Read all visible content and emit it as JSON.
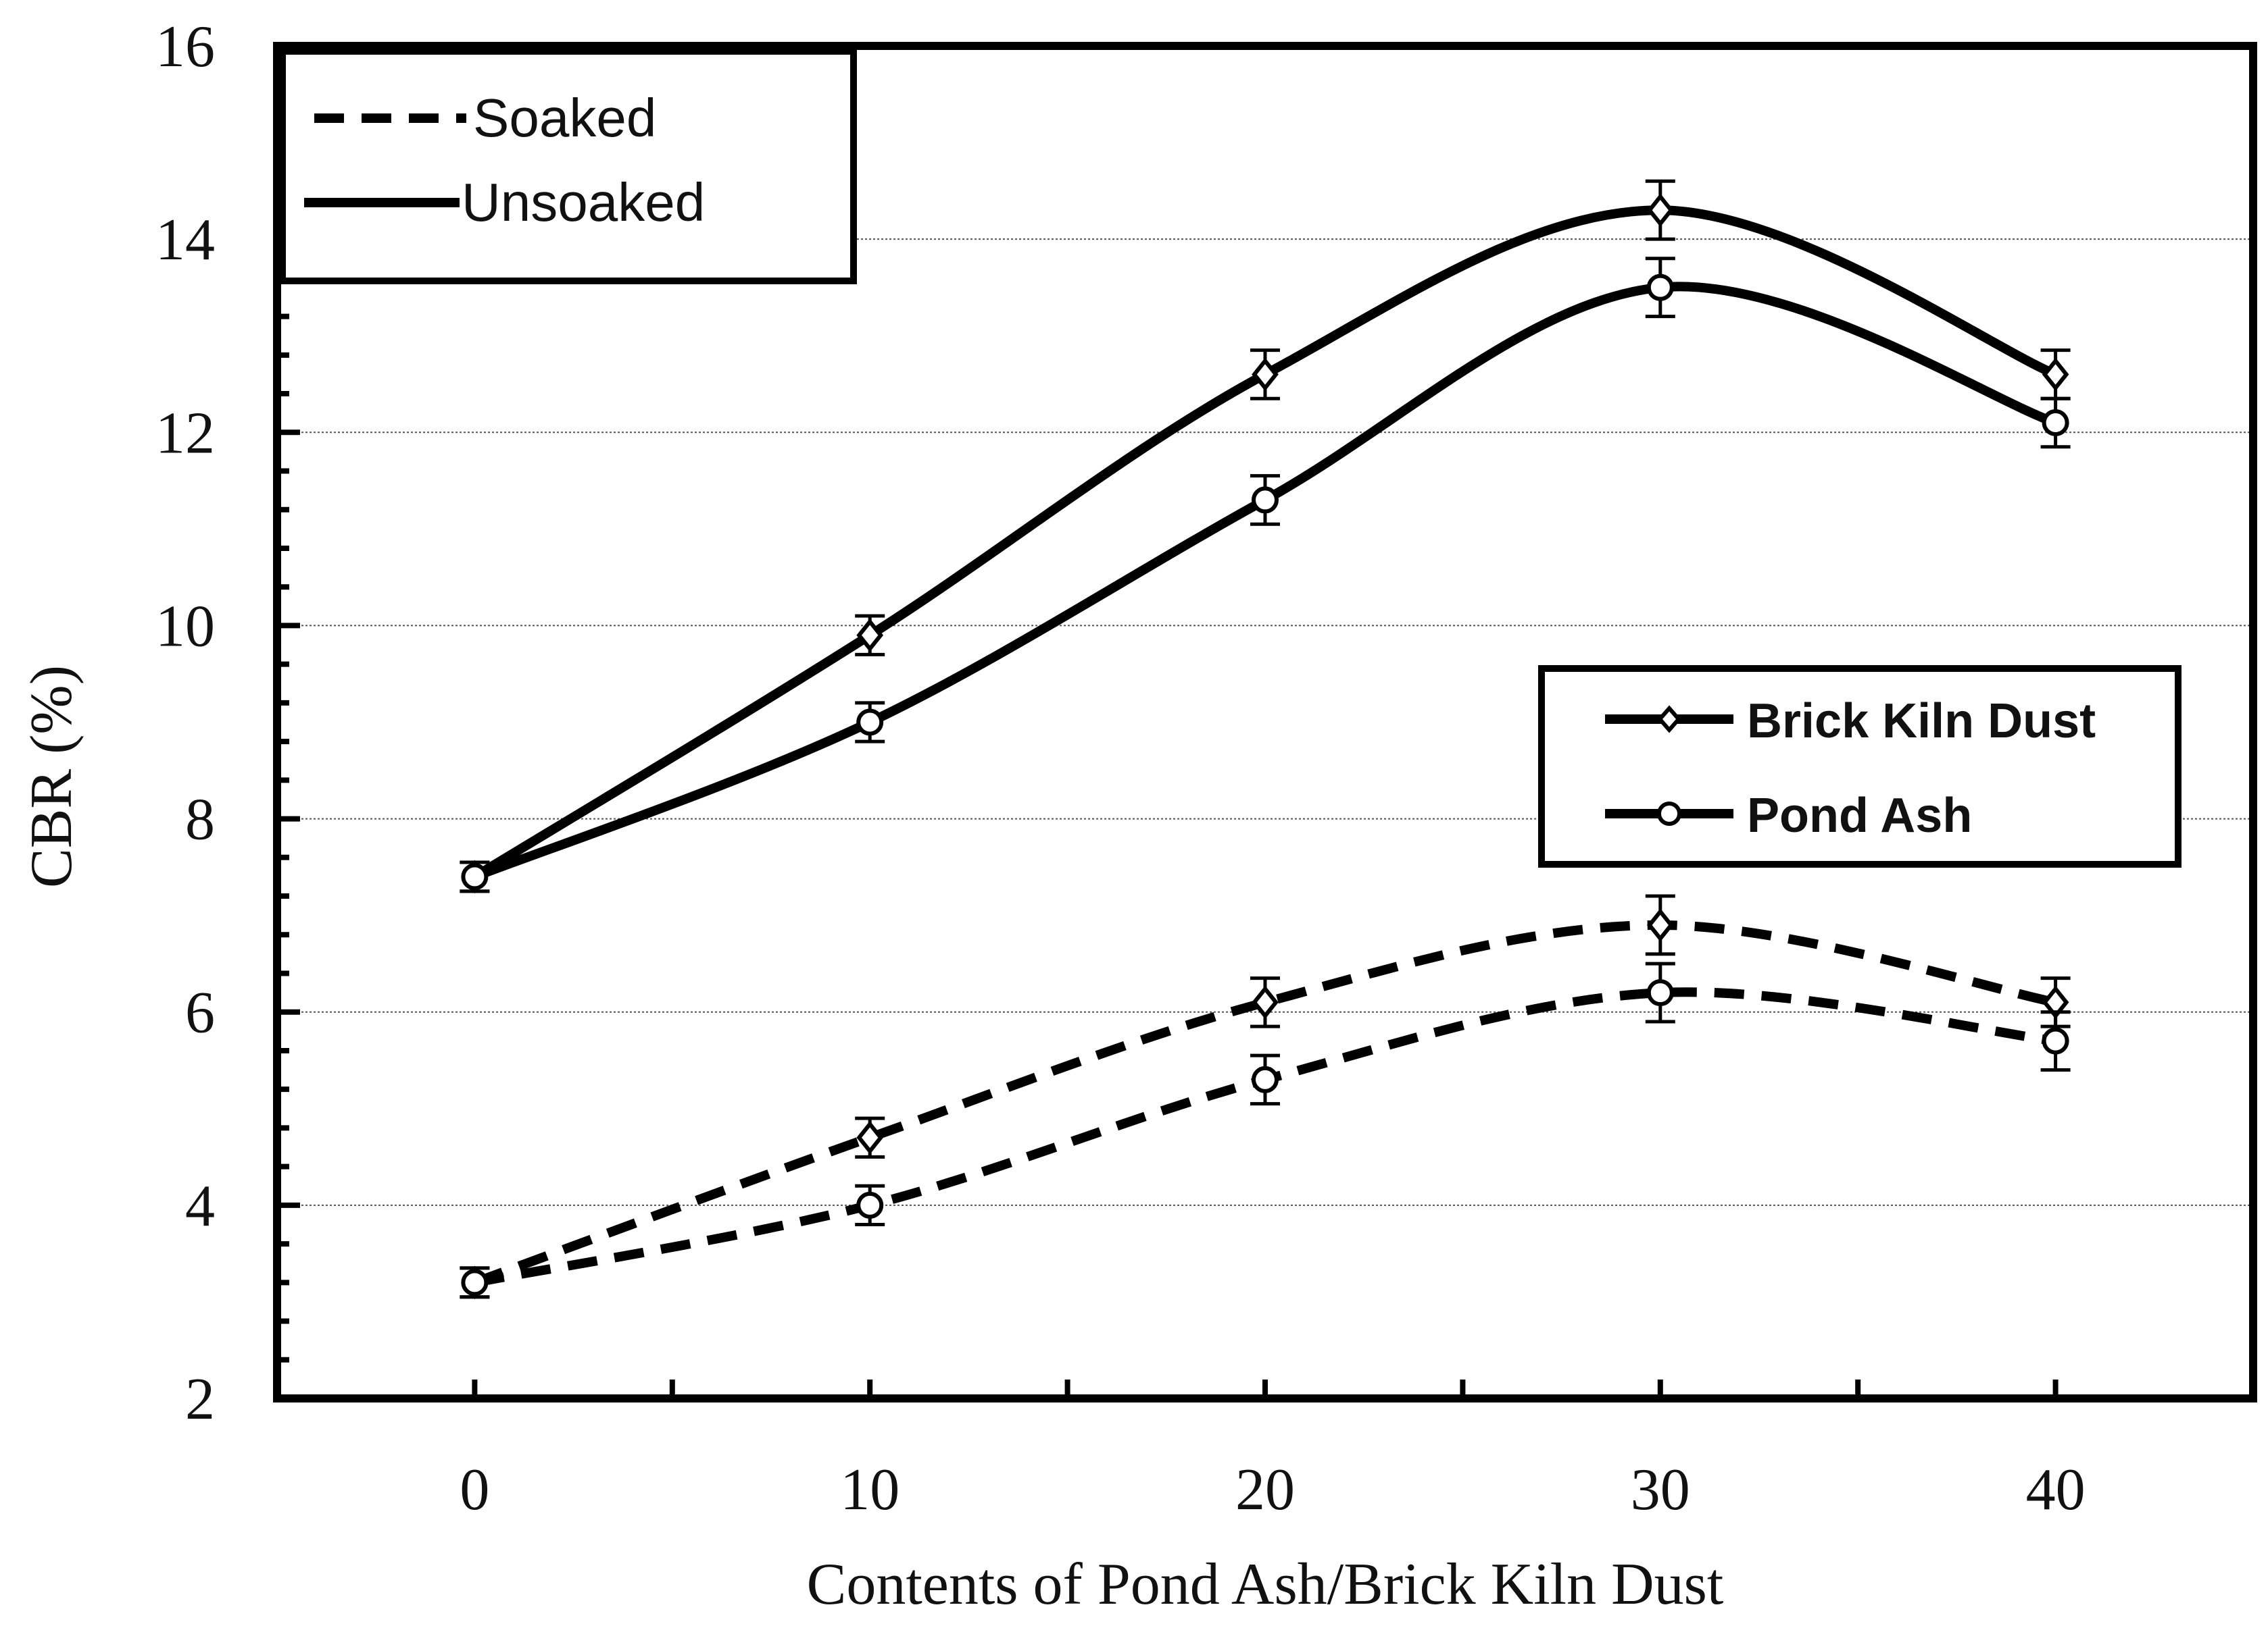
{
  "chart_data": {
    "type": "line",
    "title": "",
    "xlabel": "Contents of  Pond Ash/Brick Kiln Dust",
    "ylabel": "CBR (%)",
    "xlim": [
      -5,
      45
    ],
    "ylim": [
      2,
      16
    ],
    "x_ticks": [
      0,
      10,
      20,
      30,
      40
    ],
    "y_ticks": [
      2,
      4,
      6,
      8,
      10,
      12,
      14,
      16
    ],
    "grid": "horizontal dotted",
    "x": [
      0,
      10,
      20,
      30,
      40
    ],
    "series": [
      {
        "name": "Brick Kiln Dust - Unsoaked",
        "material": "Brick Kiln Dust",
        "condition": "Unsoaked",
        "marker": "diamond",
        "line": "solid",
        "values": [
          7.4,
          9.9,
          12.6,
          14.3,
          12.6
        ],
        "error": [
          0.15,
          0.2,
          0.25,
          0.3,
          0.25
        ]
      },
      {
        "name": "Pond Ash - Unsoaked",
        "material": "Pond Ash",
        "condition": "Unsoaked",
        "marker": "circle",
        "line": "solid",
        "values": [
          7.4,
          9.0,
          11.3,
          13.5,
          12.1
        ],
        "error": [
          0.15,
          0.2,
          0.25,
          0.3,
          0.25
        ]
      },
      {
        "name": "Brick Kiln Dust - Soaked",
        "material": "Brick Kiln Dust",
        "condition": "Soaked",
        "marker": "diamond",
        "line": "dashed",
        "values": [
          3.2,
          4.7,
          6.1,
          6.9,
          6.1
        ],
        "error": [
          0.15,
          0.2,
          0.25,
          0.3,
          0.25
        ]
      },
      {
        "name": "Pond Ash - Soaked",
        "material": "Pond Ash",
        "condition": "Soaked",
        "marker": "circle",
        "line": "dashed",
        "values": [
          3.2,
          4.0,
          5.3,
          6.2,
          5.7
        ],
        "error": [
          0.15,
          0.2,
          0.25,
          0.3,
          0.3
        ]
      }
    ],
    "legend_line_style": {
      "position": "top-left",
      "entries": [
        "Soaked",
        "Unsoaked"
      ]
    },
    "legend_material": {
      "position": "center-right",
      "entries": [
        "Brick Kiln Dust",
        "Pond Ash"
      ]
    }
  }
}
